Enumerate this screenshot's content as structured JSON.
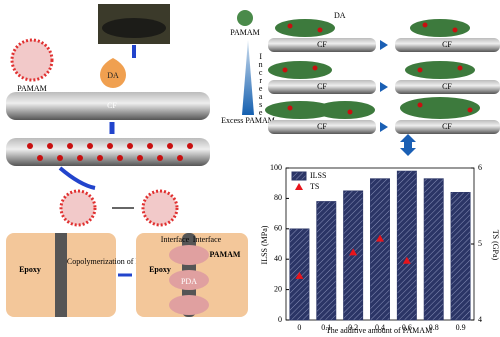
{
  "diagram": {
    "pamam_left": "PAMAM",
    "da_drop": "DA",
    "cf_main": "CF",
    "pamam_top": "PAMAM",
    "da_top": "DA",
    "increase": "Increase",
    "excess": "Excess PAMAM",
    "cf_labels": [
      "CF",
      "CF",
      "CF",
      "CF",
      "CF",
      "CF"
    ],
    "epoxy_left": "Epoxy",
    "epoxy_right": "Epoxy",
    "interface": [
      "Interface",
      "Interface"
    ],
    "pamam_bottom": "PAMAM",
    "pda": "PDA",
    "copolymerization": "Copolymerization of PDA/PAMAM"
  },
  "chart_data": {
    "type": "bar",
    "xlabel": "The additive amount of PAMAM",
    "ylabel": "ILSS (MPa)",
    "y2label": "TS (GPa)",
    "categories": [
      "0",
      "0.1",
      "0.2",
      "0.4",
      "0.6",
      "0.8",
      "0.9"
    ],
    "series": [
      {
        "name": "ILSS",
        "color": "#2b3566",
        "values": [
          60,
          78,
          85,
          93,
          98,
          93,
          84
        ]
      },
      {
        "name": "TS",
        "color": "#e8141b",
        "type": "scatter",
        "axis": "y2",
        "values": [
          4.58,
          null,
          4.89,
          5.07,
          4.78,
          null,
          null
        ]
      }
    ],
    "ylim": [
      0,
      100
    ],
    "yticks": [
      0,
      20,
      40,
      60,
      80,
      100
    ],
    "y2lim": [
      4,
      6
    ],
    "y2ticks": [
      4,
      5,
      6
    ],
    "legend": "upper-left"
  }
}
